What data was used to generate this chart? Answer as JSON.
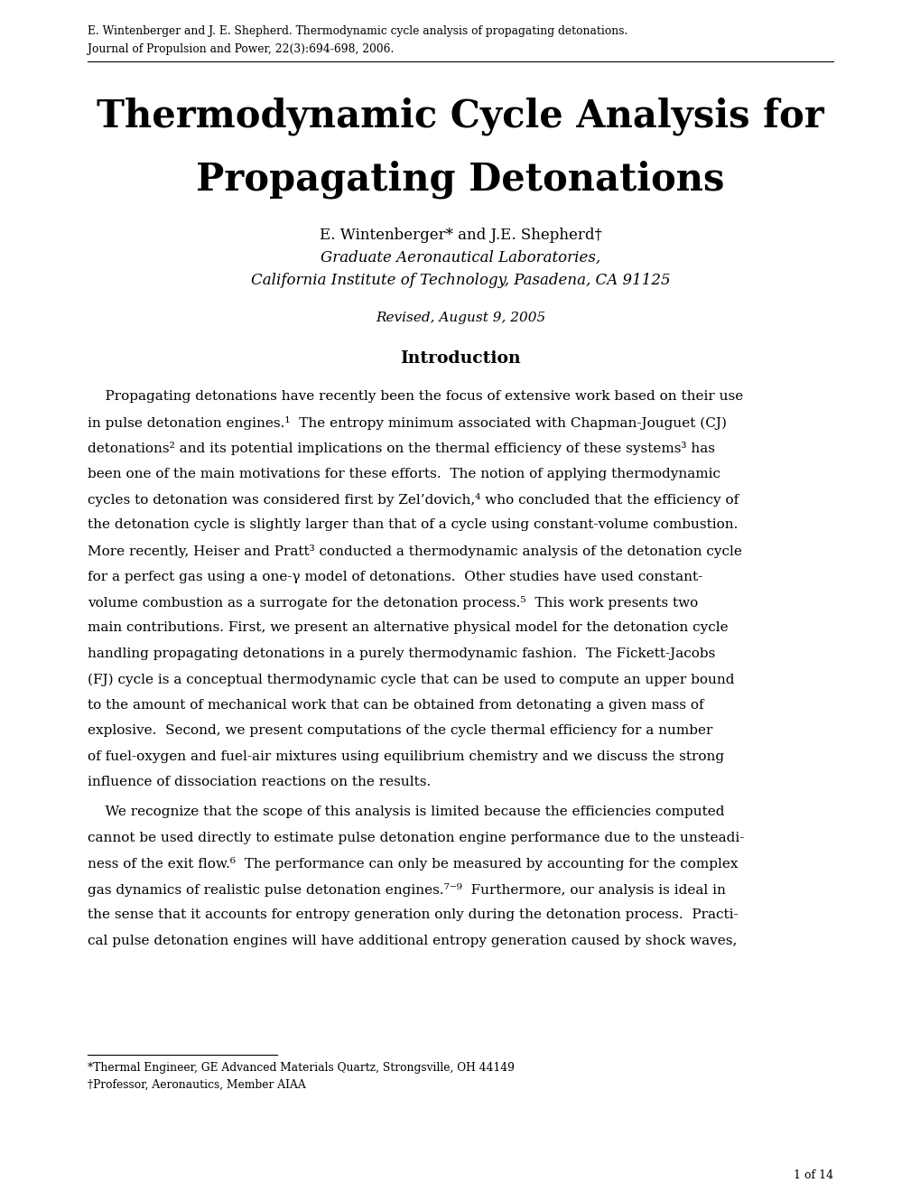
{
  "bg_color": "#ffffff",
  "header_line1": "E. Wintenberger and J. E. Shepherd. Thermodynamic cycle analysis of propagating detonations.",
  "header_line2": "Journal of Propulsion and Power, 22(3):694-698, 2006.",
  "title_line1": "Thermodynamic Cycle Analysis for",
  "title_line2": "Propagating Detonations",
  "authors": "E. Wintenberger* and J.E. Shepherd†",
  "affiliation1": "Graduate Aeronautical Laboratories,",
  "affiliation2": "California Institute of Technology, Pasadena, CA 91125",
  "revised": "Revised, August 9, 2005",
  "section_title": "Introduction",
  "paragraph1_lines": [
    "    Propagating detonations have recently been the focus of extensive work based on their use",
    "in pulse detonation engines.¹  The entropy minimum associated with Chapman-Jouguet (CJ)",
    "detonations² and its potential implications on the thermal efficiency of these systems³ has",
    "been one of the main motivations for these efforts.  The notion of applying thermodynamic",
    "cycles to detonation was considered first by Zel’dovich,⁴ who concluded that the efficiency of",
    "the detonation cycle is slightly larger than that of a cycle using constant-volume combustion.",
    "More recently, Heiser and Pratt³ conducted a thermodynamic analysis of the detonation cycle",
    "for a perfect gas using a one-γ model of detonations.  Other studies have used constant-",
    "volume combustion as a surrogate for the detonation process.⁵  This work presents two",
    "main contributions. First, we present an alternative physical model for the detonation cycle",
    "handling propagating detonations in a purely thermodynamic fashion.  The Fickett-Jacobs",
    "(FJ) cycle is a conceptual thermodynamic cycle that can be used to compute an upper bound",
    "to the amount of mechanical work that can be obtained from detonating a given mass of",
    "explosive.  Second, we present computations of the cycle thermal efficiency for a number",
    "of fuel-oxygen and fuel-air mixtures using equilibrium chemistry and we discuss the strong",
    "influence of dissociation reactions on the results."
  ],
  "paragraph2_lines": [
    "    We recognize that the scope of this analysis is limited because the efficiencies computed",
    "cannot be used directly to estimate pulse detonation engine performance due to the unsteadi-",
    "ness of the exit flow.⁶  The performance can only be measured by accounting for the complex",
    "gas dynamics of realistic pulse detonation engines.⁷⁻⁹  Furthermore, our analysis is ideal in",
    "the sense that it accounts for entropy generation only during the detonation process.  Practi-",
    "cal pulse detonation engines will have additional entropy generation caused by shock waves,"
  ],
  "footnote1": "*Thermal Engineer, GE Advanced Materials Quartz, Strongsville, OH 44149",
  "footnote2": "†Professor, Aeronautics, Member AIAA",
  "page_number": "1 of 14",
  "text_color": "#000000"
}
